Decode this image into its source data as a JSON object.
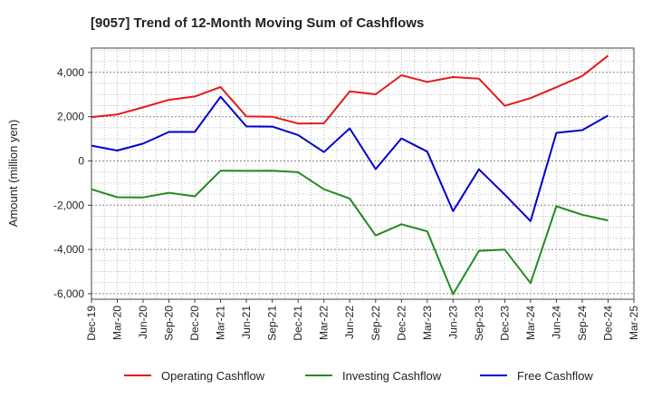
{
  "chart_data": {
    "type": "line",
    "title": "[9057]  Trend of 12-Month Moving Sum of Cashflows",
    "xlabel": "",
    "ylabel": "Amount (million yen)",
    "categories": [
      "Dec-19",
      "Mar-20",
      "Jun-20",
      "Sep-20",
      "Dec-20",
      "Mar-21",
      "Jun-21",
      "Sep-21",
      "Dec-21",
      "Mar-22",
      "Jun-22",
      "Sep-22",
      "Dec-22",
      "Mar-23",
      "Jun-23",
      "Sep-23",
      "Dec-23",
      "Mar-24",
      "Jun-24",
      "Sep-24",
      "Dec-24",
      "Mar-25"
    ],
    "ylim": [
      -6250,
      5100
    ],
    "yticks": [
      4000,
      2000,
      0,
      -2000,
      -4000,
      -6000
    ],
    "ytick_labels": [
      "4,000",
      "2,000",
      "0",
      "-2,000",
      "-4,000",
      "-6,000"
    ],
    "grid": true,
    "legend_position": "bottom",
    "series": [
      {
        "name": "Operating Cashflow",
        "color": "#e31a1c",
        "values": [
          1980,
          2100,
          2420,
          2760,
          2910,
          3340,
          2010,
          2000,
          1690,
          1700,
          3140,
          3010,
          3870,
          3570,
          3790,
          3720,
          2490,
          2840,
          3330,
          3840,
          4760,
          null
        ]
      },
      {
        "name": "Investing Cashflow",
        "color": "#228b22",
        "values": [
          -1280,
          -1640,
          -1650,
          -1440,
          -1600,
          -440,
          -450,
          -440,
          -510,
          -1280,
          -1700,
          -3370,
          -2860,
          -3180,
          -6020,
          -4060,
          -4010,
          -5520,
          -2050,
          -2430,
          -2690,
          null
        ]
      },
      {
        "name": "Free Cashflow",
        "color": "#0000cc",
        "values": [
          690,
          470,
          780,
          1310,
          1310,
          2900,
          1560,
          1550,
          1170,
          400,
          1470,
          -370,
          1020,
          420,
          -2270,
          -380,
          -1520,
          -2720,
          1270,
          1390,
          2050,
          null
        ]
      }
    ]
  }
}
